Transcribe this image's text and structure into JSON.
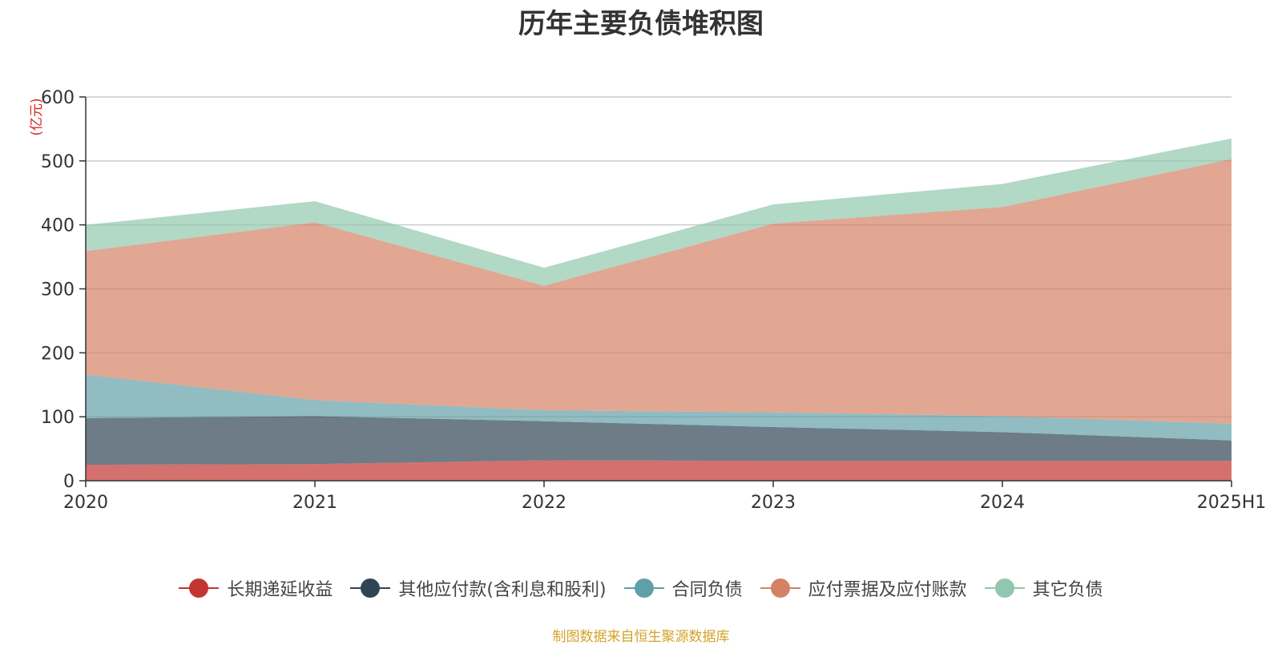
{
  "chart_data": {
    "type": "area",
    "stacked": true,
    "title": "历年主要负债堆积图",
    "ylabel": "(亿元)",
    "categories": [
      "2020",
      "2021",
      "2022",
      "2023",
      "2024",
      "2025H1"
    ],
    "ylim": [
      0,
      600
    ],
    "yticks": [
      0,
      100,
      200,
      300,
      400,
      500,
      600
    ],
    "grid": true,
    "legend_position": "bottom",
    "series": [
      {
        "name": "长期递延收益",
        "color": "#c23531",
        "values": [
          25,
          26,
          32,
          31,
          31,
          31
        ]
      },
      {
        "name": "其他应付款(含利息和股利)",
        "color": "#2f4554",
        "values": [
          73,
          75,
          61,
          53,
          45,
          32
        ]
      },
      {
        "name": "合同负债",
        "color": "#61a0a8",
        "values": [
          68,
          25,
          17,
          23,
          25,
          26
        ]
      },
      {
        "name": "应付票据及应付账款",
        "color": "#d48265",
        "values": [
          193,
          278,
          195,
          295,
          327,
          414
        ]
      },
      {
        "name": "其它负债",
        "color": "#91c7ae",
        "values": [
          41,
          33,
          28,
          30,
          36,
          32
        ]
      }
    ]
  },
  "footer": {
    "source": "制图数据来自恒生聚源数据库"
  }
}
